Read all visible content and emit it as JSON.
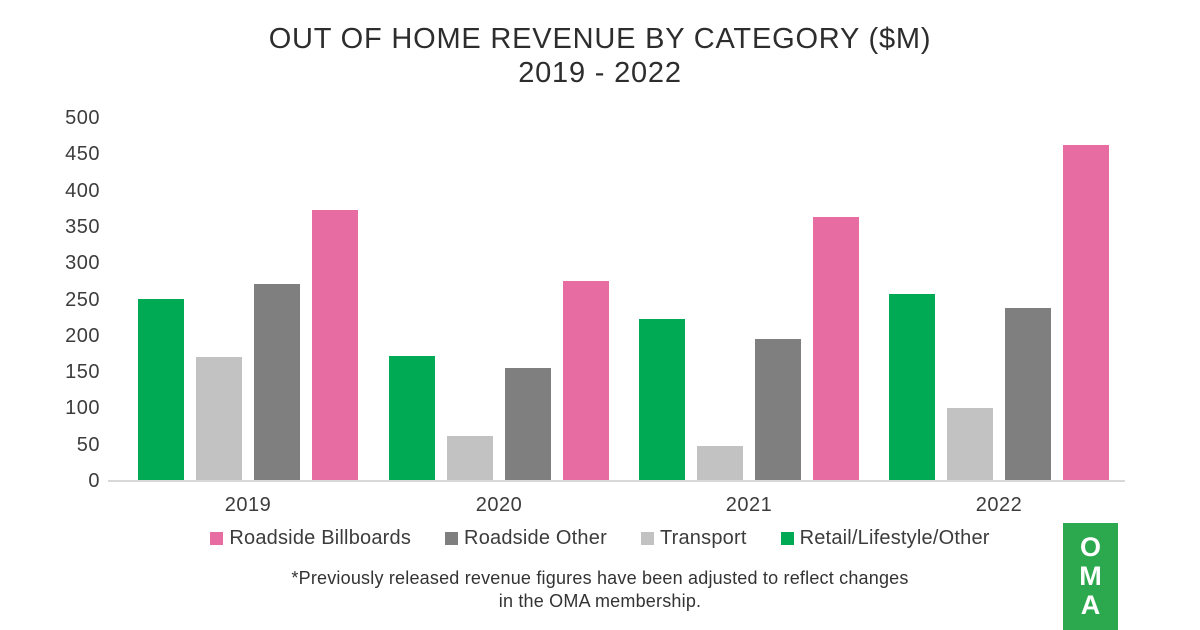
{
  "title": {
    "line1": "OUT OF HOME REVENUE BY CATEGORY ($M)",
    "line2": "2019 - 2022"
  },
  "chart_data": {
    "type": "bar",
    "title": "OUT OF HOME REVENUE BY CATEGORY ($M)",
    "subtitle": "2019 - 2022",
    "categories": [
      "2019",
      "2020",
      "2021",
      "2022"
    ],
    "series": [
      {
        "name": "Retail/Lifestyle/Other",
        "color": "#00A953",
        "values": [
          250,
          172,
          223,
          257
        ]
      },
      {
        "name": "Transport",
        "color": "#C2C2C2",
        "values": [
          171,
          62,
          48,
          100
        ]
      },
      {
        "name": "Roadside Other",
        "color": "#7F7F7F",
        "values": [
          272,
          156,
          195,
          238
        ]
      },
      {
        "name": "Roadside Billboards",
        "color": "#E66CA2",
        "values": [
          373,
          275,
          363,
          463
        ]
      }
    ],
    "legend_order": [
      3,
      2,
      1,
      0
    ],
    "xlabel": "",
    "ylabel": "",
    "ylim": [
      0,
      500
    ],
    "yticks": [
      0,
      50,
      100,
      150,
      200,
      250,
      300,
      350,
      400,
      450,
      500
    ],
    "grid": false,
    "legend_position": "bottom"
  },
  "footnote": {
    "line1": "*Previously released revenue figures have been adjusted to reflect changes",
    "line2": "in the OMA membership."
  },
  "logo": {
    "text": "OMA",
    "letters": [
      "O",
      "M",
      "A"
    ],
    "bg_color": "#2CA94F",
    "text_color": "#FFFFFF"
  },
  "colors": {
    "background": "#FFFFFF",
    "axis_line": "#D8D8D8",
    "title_text": "#2D2D2D",
    "label_text": "#3C3C3C"
  }
}
